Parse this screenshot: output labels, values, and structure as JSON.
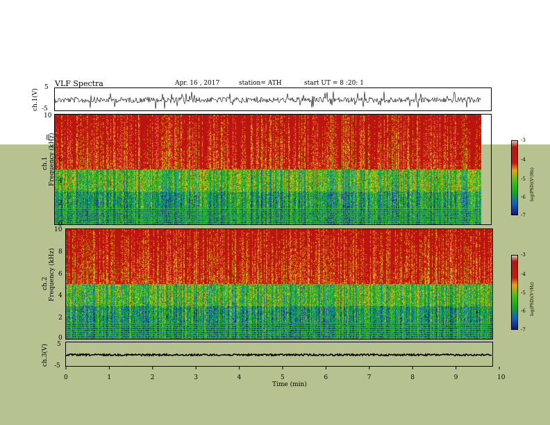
{
  "header": {
    "title": "VLF  Spectra",
    "date": "Apr. 16 , 2017",
    "station": "station= ATH",
    "start": "start  UT  =   8  :20: 1"
  },
  "panels": {
    "ch1_wave_label": "ch.1(V)",
    "ch1_wave_ticks": [
      "5",
      "-5"
    ],
    "ch1_spec_label_top": "ch.1",
    "ch1_spec_label_bottom": "Frequency  (kHz)",
    "ch2_spec_label_top": "ch.2",
    "ch2_spec_label_bottom": "Frequency  (kHz)",
    "ch3_wave_label": "ch.3(V)",
    "ch3_wave_ticks": [
      "5",
      "-5"
    ],
    "freq_ticks": [
      "10",
      "8",
      "6",
      "4",
      "2",
      "0"
    ],
    "colorbar_label": "log(PSD)(V²/Hz)",
    "colorbar_ticks": [
      "-3",
      "-4",
      "-5",
      "-6",
      "-7"
    ]
  },
  "xaxis": {
    "label": "Time  (min)",
    "ticks": [
      "0",
      "1",
      "2",
      "3",
      "4",
      "5",
      "6",
      "7",
      "8",
      "9",
      "10"
    ]
  },
  "chart_data": [
    {
      "type": "line",
      "title": "VLF  Spectra",
      "ylabel": "ch.1(V)",
      "xlabel": "Time  (min)",
      "xlim": [
        0,
        10
      ],
      "ylim": [
        -5,
        5
      ],
      "series": [
        {
          "values_description": "noisy waveform ~ -1 to 1 V with spikes",
          "mean": 0
        }
      ]
    },
    {
      "type": "heatmap",
      "ylabel": "ch.1 Frequency  (kHz)",
      "xlabel": "Time  (min)",
      "xlim": [
        0,
        10
      ],
      "ylim": [
        0,
        10
      ],
      "colorbar": {
        "label": "log(PSD)(V²/Hz)",
        "range": [
          -7,
          -3
        ]
      }
    },
    {
      "type": "heatmap",
      "ylabel": "ch.2 Frequency  (kHz)",
      "xlabel": "Time  (min)",
      "xlim": [
        0,
        10
      ],
      "ylim": [
        0,
        10
      ],
      "colorbar": {
        "label": "log(PSD)(V²/Hz)",
        "range": [
          -7,
          -3
        ]
      }
    },
    {
      "type": "line",
      "ylabel": "ch.3(V)",
      "xlabel": "Time  (min)",
      "xlim": [
        0,
        10
      ],
      "ylim": [
        -5,
        5
      ],
      "series": [
        {
          "values_description": "near-constant around -1 V",
          "mean": -1
        }
      ]
    }
  ]
}
